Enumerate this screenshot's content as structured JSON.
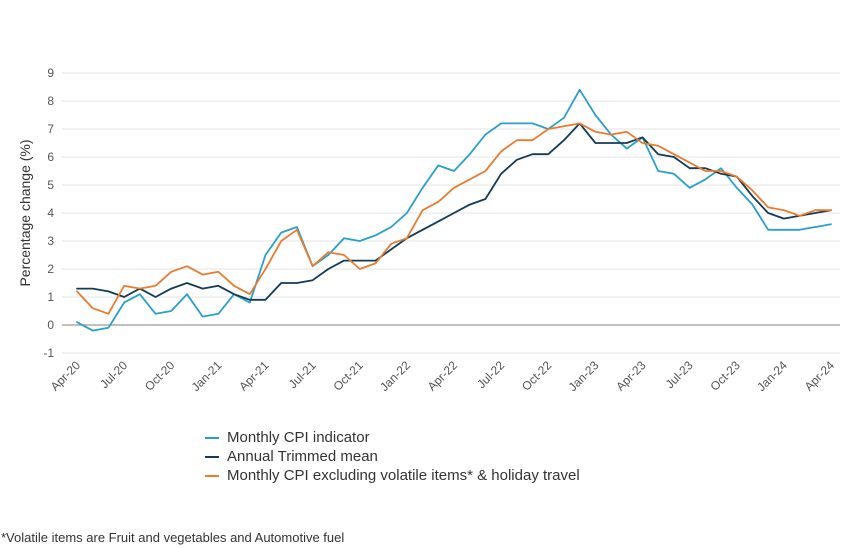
{
  "chart_data": {
    "type": "line",
    "ylabel": "Percentage change (%)",
    "ylim": [
      -1,
      9
    ],
    "yticks": [
      -1,
      0,
      1,
      2,
      3,
      4,
      5,
      6,
      7,
      8,
      9
    ],
    "x": [
      "Apr-20",
      "May-20",
      "Jun-20",
      "Jul-20",
      "Aug-20",
      "Sep-20",
      "Oct-20",
      "Nov-20",
      "Dec-20",
      "Jan-21",
      "Feb-21",
      "Mar-21",
      "Apr-21",
      "May-21",
      "Jun-21",
      "Jul-21",
      "Aug-21",
      "Sep-21",
      "Oct-21",
      "Nov-21",
      "Dec-21",
      "Jan-22",
      "Feb-22",
      "Mar-22",
      "Apr-22",
      "May-22",
      "Jun-22",
      "Jul-22",
      "Aug-22",
      "Sep-22",
      "Oct-22",
      "Nov-22",
      "Dec-22",
      "Jan-23",
      "Feb-23",
      "Mar-23",
      "Apr-23",
      "May-23",
      "Jun-23",
      "Jul-23",
      "Aug-23",
      "Sep-23",
      "Oct-23",
      "Nov-23",
      "Dec-23",
      "Jan-24",
      "Feb-24",
      "Mar-24",
      "Apr-24"
    ],
    "xtick_labels": [
      "Apr-20",
      "Jul-20",
      "Oct-20",
      "Jan-21",
      "Apr-21",
      "Jul-21",
      "Oct-21",
      "Jan-22",
      "Apr-22",
      "Jul-22",
      "Oct-22",
      "Jan-23",
      "Apr-23",
      "Jul-23",
      "Oct-23",
      "Jan-24",
      "Apr-24"
    ],
    "series": [
      {
        "name": "Monthly CPI indicator",
        "color": "#2b9fcb",
        "values": [
          0.1,
          -0.2,
          -0.1,
          0.8,
          1.1,
          0.4,
          0.5,
          1.1,
          0.3,
          0.4,
          1.1,
          0.8,
          2.5,
          3.3,
          3.5,
          2.1,
          2.5,
          3.1,
          3.0,
          3.2,
          3.5,
          4.0,
          4.9,
          5.7,
          5.5,
          6.1,
          6.8,
          7.2,
          7.2,
          7.2,
          7.0,
          7.4,
          8.4,
          7.5,
          6.8,
          6.3,
          6.7,
          5.5,
          5.4,
          4.9,
          5.2,
          5.6,
          4.9,
          4.3,
          3.4,
          3.4,
          3.4,
          3.5,
          3.6
        ]
      },
      {
        "name": "Annual Trimmed mean",
        "color": "#123b56",
        "values": [
          1.3,
          1.3,
          1.2,
          1.0,
          1.3,
          1.0,
          1.3,
          1.5,
          1.3,
          1.4,
          1.1,
          0.9,
          0.9,
          1.5,
          1.5,
          1.6,
          2.0,
          2.3,
          2.3,
          2.3,
          2.7,
          3.1,
          3.4,
          3.7,
          4.0,
          4.3,
          4.5,
          5.4,
          5.9,
          6.1,
          6.1,
          6.6,
          7.2,
          6.5,
          6.5,
          6.5,
          6.7,
          6.1,
          6.0,
          5.6,
          5.6,
          5.4,
          5.3,
          4.6,
          4.0,
          3.8,
          3.9,
          4.0,
          4.1
        ]
      },
      {
        "name": "Monthly CPI excluding volatile items* & holiday travel",
        "color": "#e87c2f",
        "values": [
          1.2,
          0.6,
          0.4,
          1.4,
          1.3,
          1.4,
          1.9,
          2.1,
          1.8,
          1.9,
          1.4,
          1.1,
          2.0,
          3.0,
          3.4,
          2.1,
          2.6,
          2.5,
          2.0,
          2.2,
          2.9,
          3.1,
          4.1,
          4.4,
          4.9,
          5.2,
          5.5,
          6.2,
          6.6,
          6.6,
          7.0,
          7.1,
          7.2,
          6.9,
          6.8,
          6.9,
          6.5,
          6.4,
          6.1,
          5.8,
          5.5,
          5.5,
          5.3,
          4.8,
          4.2,
          4.1,
          3.9,
          4.1,
          4.1
        ]
      }
    ],
    "legend_position": "bottom-left",
    "grid": true,
    "footnote": "*Volatile items are Fruit and vegetables and Automotive fuel"
  },
  "colors": {
    "grid": "#e3e3e3",
    "zero_line": "#9a9a9a",
    "text": "#333333"
  }
}
